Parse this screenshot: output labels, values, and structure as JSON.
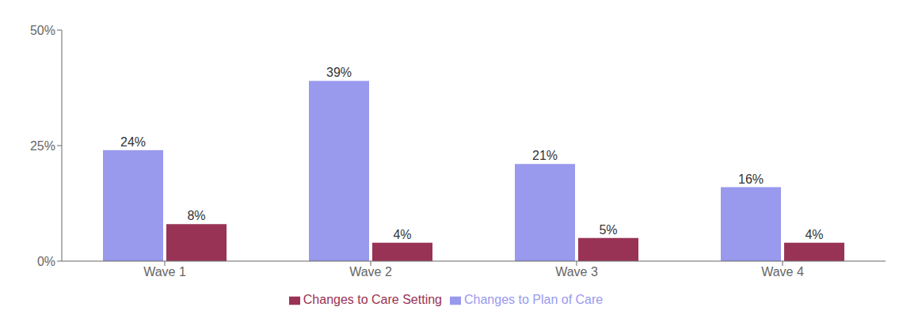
{
  "chart_data": {
    "type": "bar",
    "categories": [
      "Wave 1",
      "Wave 2",
      "Wave 3",
      "Wave 4"
    ],
    "series": [
      {
        "name": "Changes to Plan of Care",
        "color": "#9999EE",
        "values": [
          24,
          39,
          21,
          16
        ],
        "value_labels": [
          "24%",
          "39%",
          "21%",
          "16%"
        ]
      },
      {
        "name": "Changes to Care Setting",
        "color": "#993355",
        "values": [
          8,
          4,
          5,
          4
        ],
        "value_labels": [
          "8%",
          "4%",
          "5%",
          "4%"
        ]
      }
    ],
    "ylim": [
      0,
      50
    ],
    "yticks": [
      {
        "value": 0,
        "label": "0%"
      },
      {
        "value": 25,
        "label": "25%"
      },
      {
        "value": 50,
        "label": "50%"
      }
    ],
    "grid": false,
    "legend": "bottom",
    "data_labels": true
  }
}
